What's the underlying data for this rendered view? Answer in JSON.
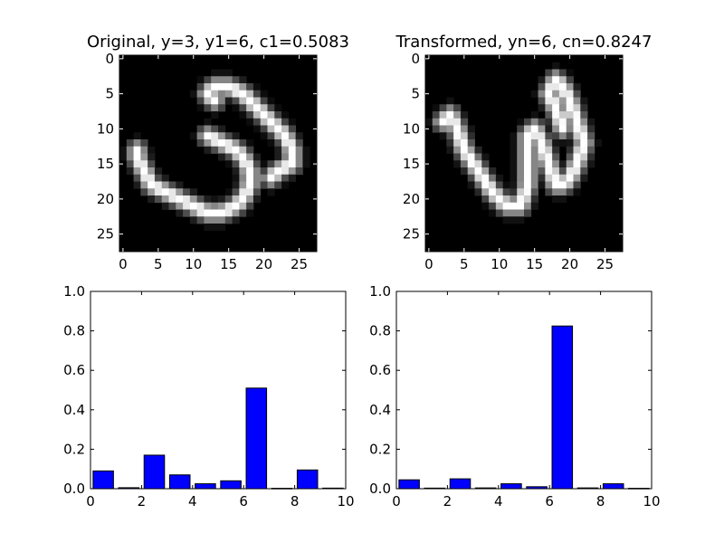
{
  "figure": {
    "background": "#ffffff",
    "bar_color": "#0000ff",
    "edge_color": "#000000"
  },
  "chart_data": [
    {
      "type": "heatmap",
      "title": "Original, y=3, y1=6, c1=0.5083",
      "colormap": "gray",
      "shape": [
        28,
        28
      ],
      "xlim": [
        0,
        27
      ],
      "ylim": [
        27,
        0
      ],
      "xticks": [
        0,
        5,
        10,
        15,
        20,
        25
      ],
      "yticks": [
        0,
        5,
        10,
        15,
        20,
        25
      ],
      "strokes": [
        {
          "points": [
            [
              13,
              4
            ],
            [
              15,
              4
            ],
            [
              17,
              5
            ],
            [
              19,
              7
            ],
            [
              21,
              9
            ],
            [
              23,
              11
            ],
            [
              24,
              13
            ],
            [
              24,
              15
            ],
            [
              22,
              16
            ],
            [
              21,
              17
            ]
          ]
        },
        {
          "points": [
            [
              12,
              11
            ],
            [
              14,
              12
            ],
            [
              16,
              13
            ],
            [
              17,
              14
            ],
            [
              18,
              16
            ],
            [
              18,
              18
            ],
            [
              17,
              20
            ],
            [
              16,
              21
            ],
            [
              14,
              22
            ],
            [
              12,
              22
            ],
            [
              10,
              21
            ],
            [
              8,
              20
            ],
            [
              6,
              19
            ],
            [
              4,
              18
            ],
            [
              3,
              16
            ],
            [
              2,
              14
            ],
            [
              2,
              13
            ]
          ]
        },
        {
          "points": [
            [
              13,
              4
            ],
            [
              12,
              5
            ],
            [
              13,
              6
            ]
          ]
        }
      ]
    },
    {
      "type": "heatmap",
      "title": "Transformed, yn=6, cn=0.8247",
      "colormap": "gray",
      "shape": [
        28,
        28
      ],
      "xlim": [
        0,
        27
      ],
      "ylim": [
        27,
        0
      ],
      "xticks": [
        0,
        5,
        10,
        15,
        20,
        25
      ],
      "yticks": [
        0,
        5,
        10,
        15,
        20,
        25
      ],
      "strokes": [
        {
          "points": [
            [
              2,
              9
            ],
            [
              3,
              8
            ],
            [
              4,
              10
            ],
            [
              5,
              13
            ],
            [
              7,
              16
            ],
            [
              9,
              19
            ],
            [
              11,
              21
            ],
            [
              13,
              21
            ],
            [
              14,
              18
            ],
            [
              14,
              14
            ],
            [
              14,
              11
            ],
            [
              15,
              10
            ],
            [
              16,
              12
            ],
            [
              17,
              15
            ],
            [
              18,
              18
            ],
            [
              19,
              18
            ],
            [
              20,
              17
            ],
            [
              21,
              15
            ],
            [
              22,
              12
            ],
            [
              21,
              9
            ],
            [
              20,
              6
            ],
            [
              19,
              4
            ],
            [
              18,
              3
            ],
            [
              17,
              5
            ],
            [
              18,
              7
            ],
            [
              19,
              10
            ]
          ]
        }
      ]
    },
    {
      "type": "bar",
      "categories": [
        0,
        1,
        2,
        3,
        4,
        5,
        6,
        7,
        8,
        9
      ],
      "values": [
        0.09,
        0.005,
        0.17,
        0.07,
        0.025,
        0.04,
        0.51,
        0.002,
        0.095,
        0.003
      ],
      "xlim": [
        0,
        10
      ],
      "ylim": [
        0,
        1.0
      ],
      "xticks": [
        0,
        2,
        4,
        6,
        8,
        10
      ],
      "yticks": [
        0.0,
        0.2,
        0.4,
        0.6,
        0.8,
        1.0
      ],
      "ytick_labels": [
        "0.0",
        "0.2",
        "0.4",
        "0.6",
        "0.8",
        "1.0"
      ],
      "bar_width": 0.8
    },
    {
      "type": "bar",
      "categories": [
        0,
        1,
        2,
        3,
        4,
        5,
        6,
        7,
        8,
        9
      ],
      "values": [
        0.045,
        0.003,
        0.05,
        0.004,
        0.025,
        0.01,
        0.8247,
        0.004,
        0.025,
        0.002
      ],
      "xlim": [
        0,
        10
      ],
      "ylim": [
        0,
        1.0
      ],
      "xticks": [
        0,
        2,
        4,
        6,
        8,
        10
      ],
      "yticks": [
        0.0,
        0.2,
        0.4,
        0.6,
        0.8,
        1.0
      ],
      "ytick_labels": [
        "0.0",
        "0.2",
        "0.4",
        "0.6",
        "0.8",
        "1.0"
      ],
      "bar_width": 0.8
    }
  ]
}
